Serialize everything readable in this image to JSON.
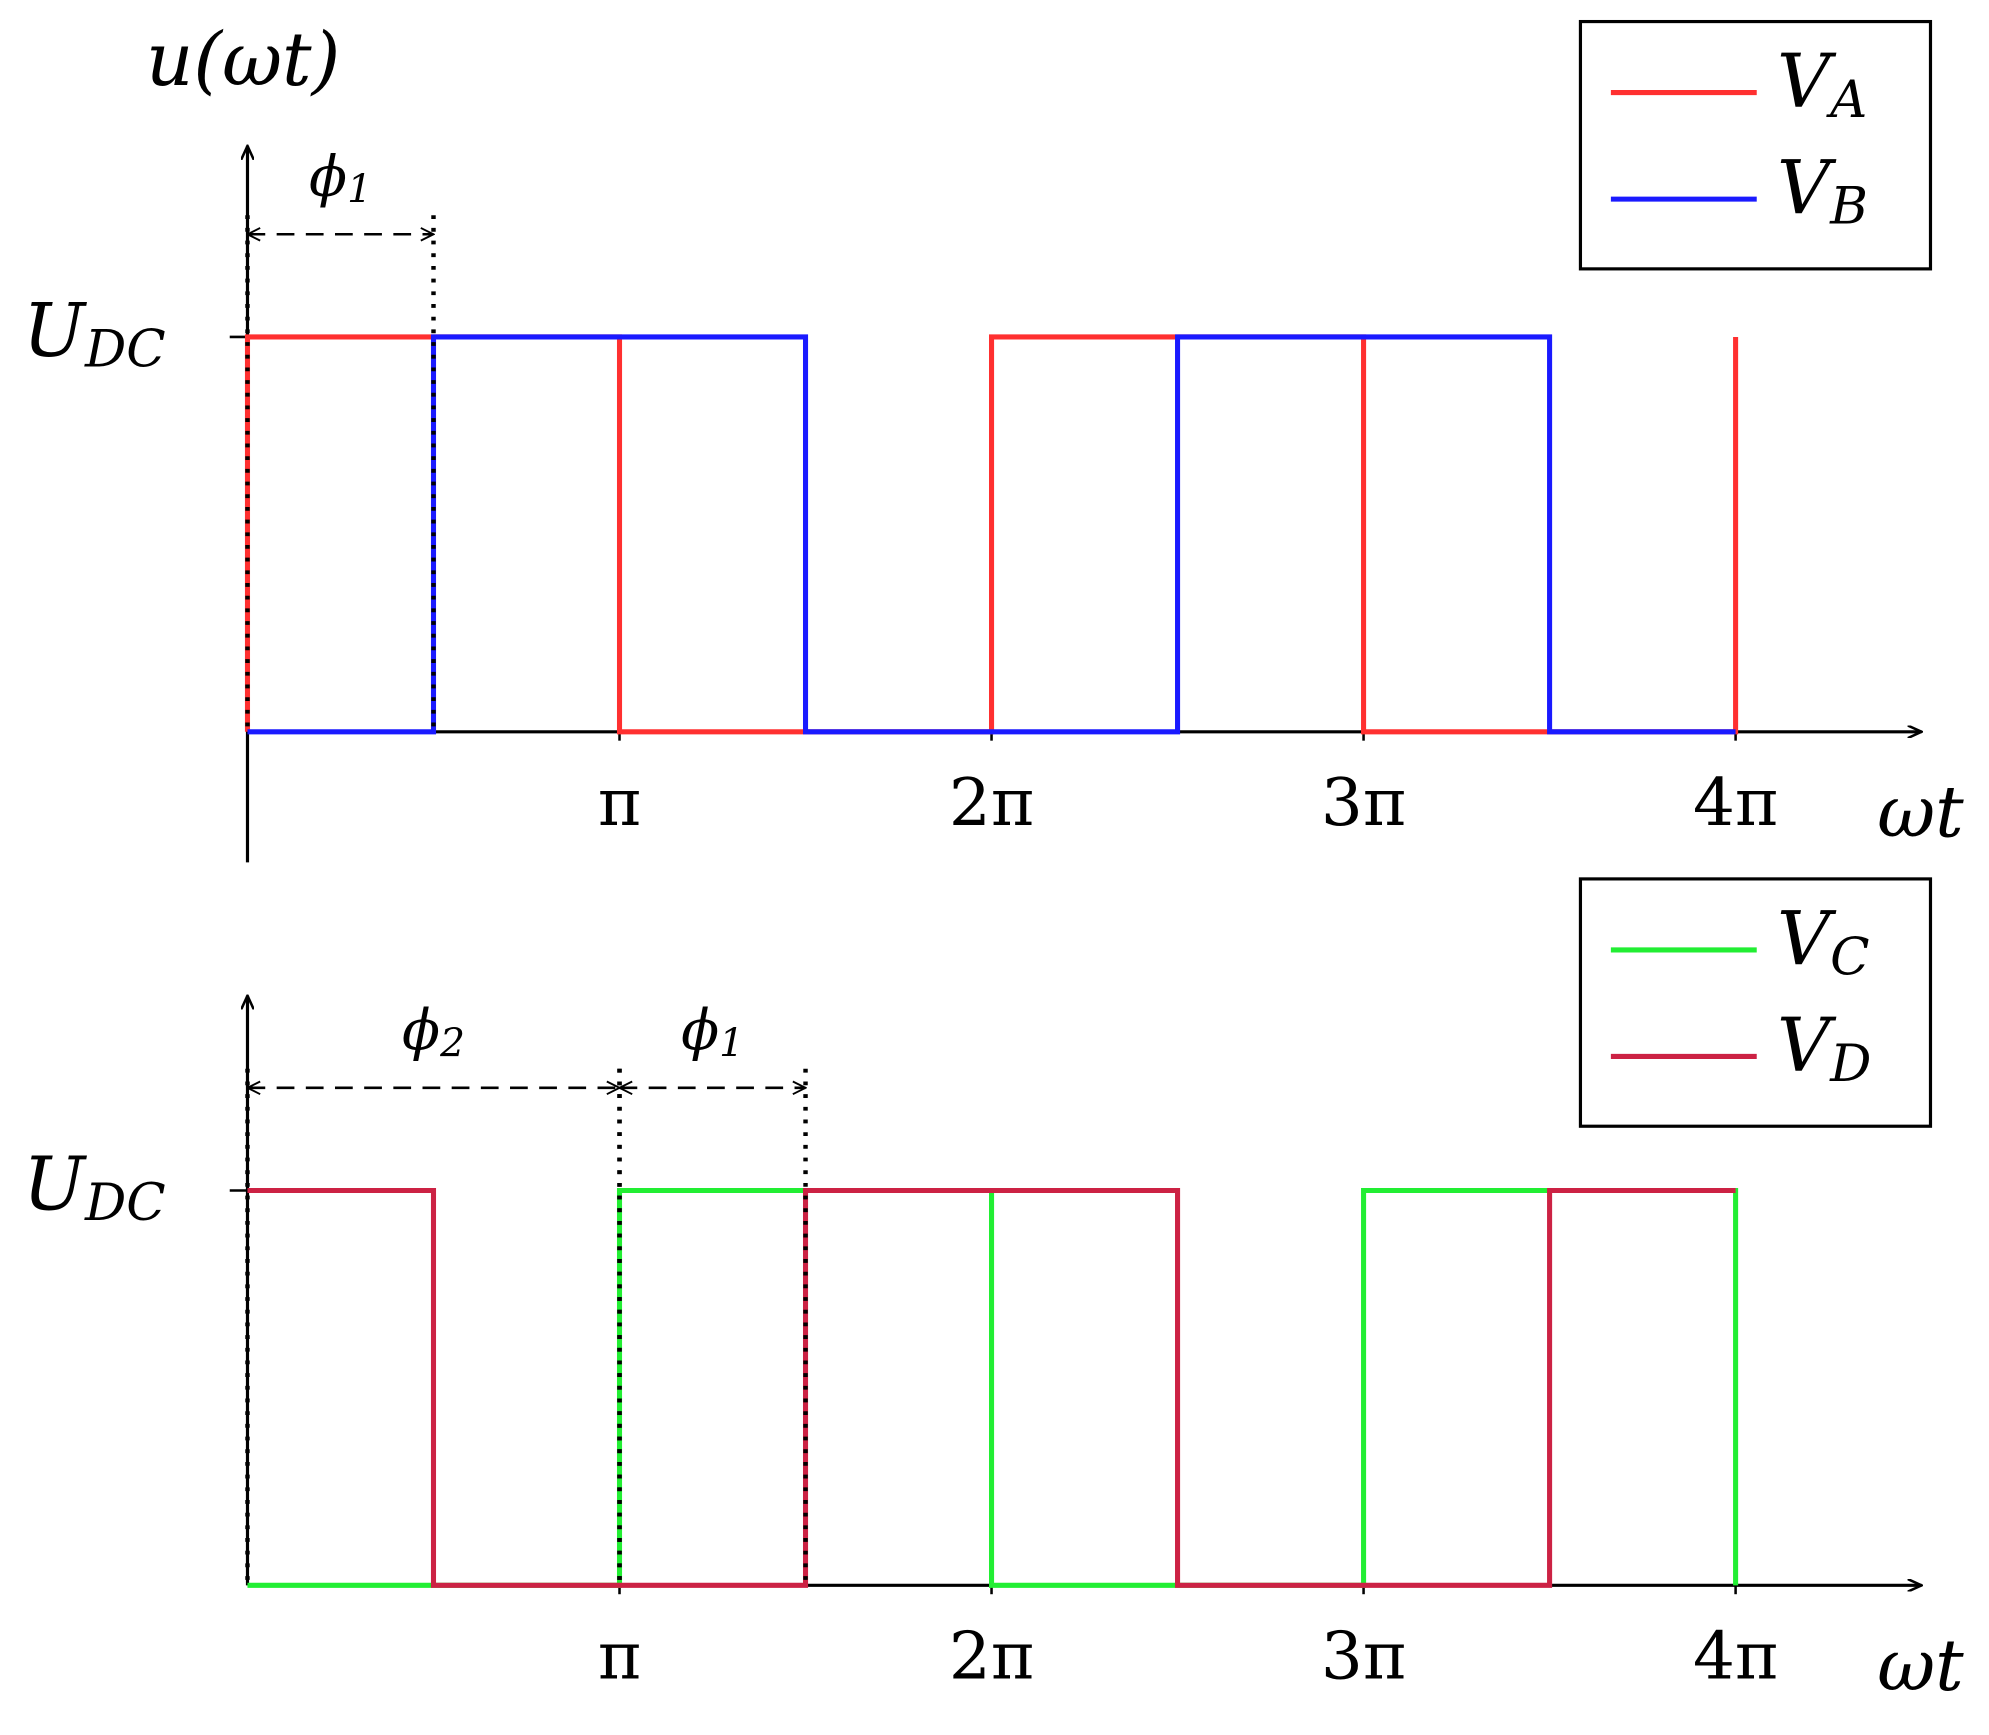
{
  "chart_data": [
    {
      "type": "line",
      "ylabel": "u(ωt)",
      "xlabel": "ωt",
      "xlim": [
        0,
        4.5
      ],
      "ylim": [
        0,
        1.5
      ],
      "xticks": [
        {
          "value": 1,
          "label": "π"
        },
        {
          "value": 2,
          "label": "2π"
        },
        {
          "value": 3,
          "label": "3π"
        },
        {
          "value": 4,
          "label": "4π"
        }
      ],
      "yticks": [
        {
          "value": 1,
          "label": "UDC"
        }
      ],
      "legend": "upper right",
      "series": [
        {
          "name": "VA",
          "color": "#ff3030",
          "x": [
            0,
            0,
            1,
            1,
            2,
            2,
            3,
            3,
            4,
            4
          ],
          "values": [
            0,
            1,
            1,
            0,
            0,
            1,
            1,
            0,
            0,
            1
          ]
        },
        {
          "name": "VB",
          "color": "#1a1aff",
          "x": [
            0,
            0.5,
            0.5,
            1.5,
            1.5,
            2.5,
            2.5,
            3.5,
            3.5,
            4
          ],
          "values": [
            0,
            0,
            1,
            1,
            0,
            0,
            1,
            1,
            0,
            0
          ]
        }
      ],
      "annotations": [
        {
          "text": "ϕ1",
          "span": [
            0,
            0.5
          ]
        }
      ]
    },
    {
      "type": "line",
      "xlabel": "ωt",
      "xlim": [
        0,
        4.5
      ],
      "ylim": [
        0,
        1.5
      ],
      "xticks": [
        {
          "value": 1,
          "label": "π"
        },
        {
          "value": 2,
          "label": "2π"
        },
        {
          "value": 3,
          "label": "3π"
        },
        {
          "value": 4,
          "label": "4π"
        }
      ],
      "yticks": [
        {
          "value": 1,
          "label": "UDC"
        }
      ],
      "legend": "upper right",
      "series": [
        {
          "name": "VC",
          "color": "#22ee33",
          "x": [
            0,
            1,
            1,
            2,
            2,
            3,
            3,
            4,
            4
          ],
          "values": [
            0,
            0,
            1,
            1,
            0,
            0,
            1,
            1,
            0
          ]
        },
        {
          "name": "VD",
          "color": "#cc2244",
          "x": [
            0,
            0.5,
            0.5,
            1.5,
            1.5,
            2.5,
            2.5,
            3.5,
            3.5,
            4
          ],
          "values": [
            1,
            1,
            0,
            0,
            1,
            1,
            0,
            0,
            1,
            1
          ]
        }
      ],
      "annotations": [
        {
          "text": "ϕ2",
          "span": [
            0,
            1
          ]
        },
        {
          "text": "ϕ1",
          "span": [
            1,
            1.5
          ]
        }
      ]
    }
  ]
}
